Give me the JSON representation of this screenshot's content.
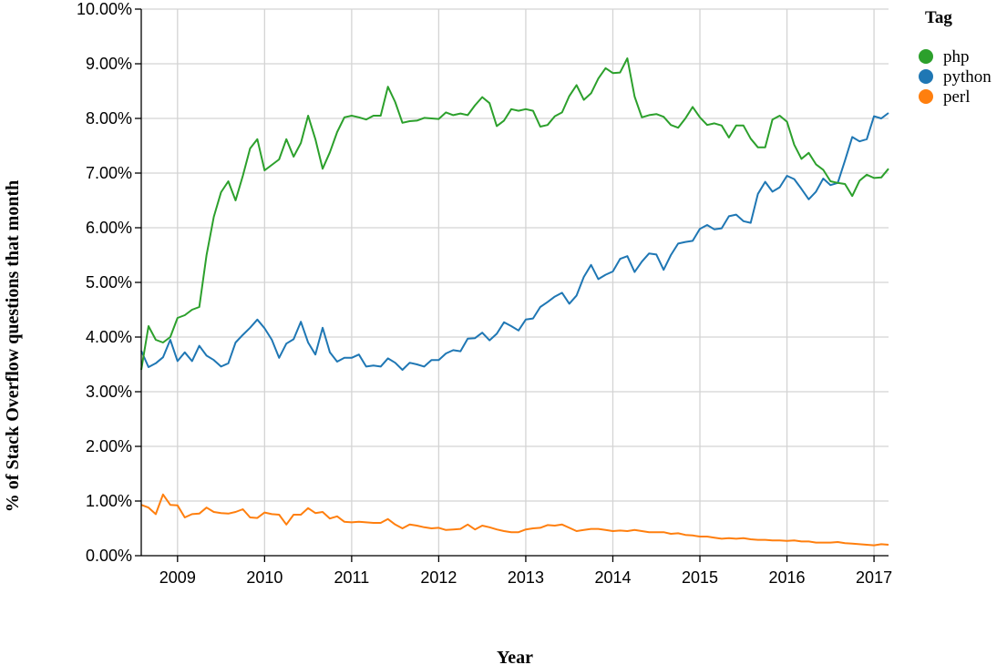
{
  "chart_data": {
    "type": "line",
    "xlabel": "Year",
    "ylabel": "% of Stack Overflow questions that month",
    "x_ticks": [
      "2009",
      "2010",
      "2011",
      "2012",
      "2013",
      "2014",
      "2015",
      "2016",
      "2017"
    ],
    "y_ticks": [
      "0.00%",
      "1.00%",
      "2.00%",
      "3.00%",
      "4.00%",
      "5.00%",
      "6.00%",
      "7.00%",
      "8.00%",
      "9.00%",
      "10.00%"
    ],
    "xlim": [
      "2008-08",
      "2017-03"
    ],
    "ylim": [
      0,
      10
    ],
    "grid": true,
    "legend": {
      "title": "Tag",
      "placement": "right"
    },
    "x": [
      "2008-08",
      "2008-09",
      "2008-10",
      "2008-11",
      "2008-12",
      "2009-01",
      "2009-02",
      "2009-03",
      "2009-04",
      "2009-05",
      "2009-06",
      "2009-07",
      "2009-08",
      "2009-09",
      "2009-10",
      "2009-11",
      "2009-12",
      "2010-01",
      "2010-02",
      "2010-03",
      "2010-04",
      "2010-05",
      "2010-06",
      "2010-07",
      "2010-08",
      "2010-09",
      "2010-10",
      "2010-11",
      "2010-12",
      "2011-01",
      "2011-02",
      "2011-03",
      "2011-04",
      "2011-05",
      "2011-06",
      "2011-07",
      "2011-08",
      "2011-09",
      "2011-10",
      "2011-11",
      "2011-12",
      "2012-01",
      "2012-02",
      "2012-03",
      "2012-04",
      "2012-05",
      "2012-06",
      "2012-07",
      "2012-08",
      "2012-09",
      "2012-10",
      "2012-11",
      "2012-12",
      "2013-01",
      "2013-02",
      "2013-03",
      "2013-04",
      "2013-05",
      "2013-06",
      "2013-07",
      "2013-08",
      "2013-09",
      "2013-10",
      "2013-11",
      "2013-12",
      "2014-01",
      "2014-02",
      "2014-03",
      "2014-04",
      "2014-05",
      "2014-06",
      "2014-07",
      "2014-08",
      "2014-09",
      "2014-10",
      "2014-11",
      "2014-12",
      "2015-01",
      "2015-02",
      "2015-03",
      "2015-04",
      "2015-05",
      "2015-06",
      "2015-07",
      "2015-08",
      "2015-09",
      "2015-10",
      "2015-11",
      "2015-12",
      "2016-01",
      "2016-02",
      "2016-03",
      "2016-04",
      "2016-05",
      "2016-06",
      "2016-07",
      "2016-08",
      "2016-09",
      "2016-10",
      "2016-11",
      "2016-12",
      "2017-01",
      "2017-02",
      "2017-03"
    ],
    "series": [
      {
        "name": "php",
        "color": "#2ca02c",
        "values": [
          3.4,
          4.2,
          3.95,
          3.9,
          4.0,
          4.35,
          4.4,
          4.5,
          4.55,
          5.5,
          6.2,
          6.65,
          6.85,
          6.5,
          6.95,
          7.45,
          7.62,
          7.05,
          7.15,
          7.25,
          7.62,
          7.3,
          7.55,
          8.05,
          7.62,
          7.08,
          7.38,
          7.75,
          8.02,
          8.05,
          8.02,
          7.98,
          8.05,
          8.05,
          8.58,
          8.3,
          7.92,
          7.95,
          7.96,
          8.01,
          8.0,
          7.99,
          8.11,
          8.06,
          8.09,
          8.06,
          8.24,
          8.39,
          8.28,
          7.86,
          7.96,
          8.17,
          8.14,
          8.17,
          8.14,
          7.85,
          7.88,
          8.04,
          8.11,
          8.41,
          8.61,
          8.34,
          8.46,
          8.73,
          8.92,
          8.83,
          8.84,
          9.1,
          8.4,
          8.02,
          8.06,
          8.08,
          8.03,
          7.88,
          7.83,
          8.0,
          8.21,
          8.02,
          7.88,
          7.91,
          7.87,
          7.65,
          7.87,
          7.87,
          7.63,
          7.47,
          7.47,
          7.98,
          8.05,
          7.94,
          7.52,
          7.26,
          7.37,
          7.16,
          7.06,
          6.85,
          6.82,
          6.8,
          6.58,
          6.86,
          6.97,
          6.91,
          6.92,
          7.08
        ]
      },
      {
        "name": "python",
        "color": "#1f77b4",
        "values": [
          3.75,
          3.45,
          3.52,
          3.63,
          3.95,
          3.56,
          3.72,
          3.56,
          3.84,
          3.66,
          3.58,
          3.46,
          3.52,
          3.9,
          4.04,
          4.17,
          4.32,
          4.16,
          3.95,
          3.62,
          3.88,
          3.96,
          4.28,
          3.9,
          3.68,
          4.17,
          3.72,
          3.55,
          3.62,
          3.62,
          3.68,
          3.46,
          3.48,
          3.46,
          3.61,
          3.53,
          3.4,
          3.53,
          3.5,
          3.46,
          3.58,
          3.58,
          3.7,
          3.76,
          3.74,
          3.97,
          3.98,
          4.08,
          3.94,
          4.06,
          4.27,
          4.2,
          4.12,
          4.32,
          4.34,
          4.55,
          4.64,
          4.74,
          4.81,
          4.61,
          4.76,
          5.1,
          5.32,
          5.06,
          5.14,
          5.2,
          5.43,
          5.48,
          5.19,
          5.38,
          5.53,
          5.51,
          5.23,
          5.5,
          5.71,
          5.74,
          5.76,
          5.98,
          6.05,
          5.97,
          5.99,
          6.21,
          6.24,
          6.12,
          6.09,
          6.62,
          6.84,
          6.66,
          6.74,
          6.95,
          6.89,
          6.71,
          6.52,
          6.66,
          6.9,
          6.78,
          6.82,
          7.23,
          7.66,
          7.58,
          7.62,
          8.04,
          8.0,
          8.1
        ]
      },
      {
        "name": "perl",
        "color": "#ff7f0e",
        "values": [
          0.93,
          0.88,
          0.76,
          1.12,
          0.93,
          0.92,
          0.7,
          0.76,
          0.77,
          0.88,
          0.8,
          0.78,
          0.77,
          0.8,
          0.85,
          0.7,
          0.69,
          0.79,
          0.76,
          0.75,
          0.57,
          0.75,
          0.75,
          0.87,
          0.78,
          0.8,
          0.68,
          0.72,
          0.62,
          0.61,
          0.62,
          0.61,
          0.6,
          0.6,
          0.67,
          0.57,
          0.5,
          0.57,
          0.55,
          0.52,
          0.5,
          0.51,
          0.47,
          0.48,
          0.49,
          0.57,
          0.48,
          0.55,
          0.52,
          0.48,
          0.45,
          0.43,
          0.43,
          0.48,
          0.5,
          0.51,
          0.56,
          0.55,
          0.57,
          0.51,
          0.45,
          0.47,
          0.49,
          0.49,
          0.47,
          0.45,
          0.46,
          0.45,
          0.47,
          0.45,
          0.43,
          0.43,
          0.43,
          0.4,
          0.41,
          0.38,
          0.37,
          0.35,
          0.35,
          0.33,
          0.31,
          0.32,
          0.31,
          0.32,
          0.3,
          0.29,
          0.29,
          0.28,
          0.28,
          0.27,
          0.28,
          0.26,
          0.26,
          0.24,
          0.24,
          0.24,
          0.25,
          0.23,
          0.22,
          0.21,
          0.2,
          0.19,
          0.21,
          0.2
        ]
      }
    ]
  }
}
